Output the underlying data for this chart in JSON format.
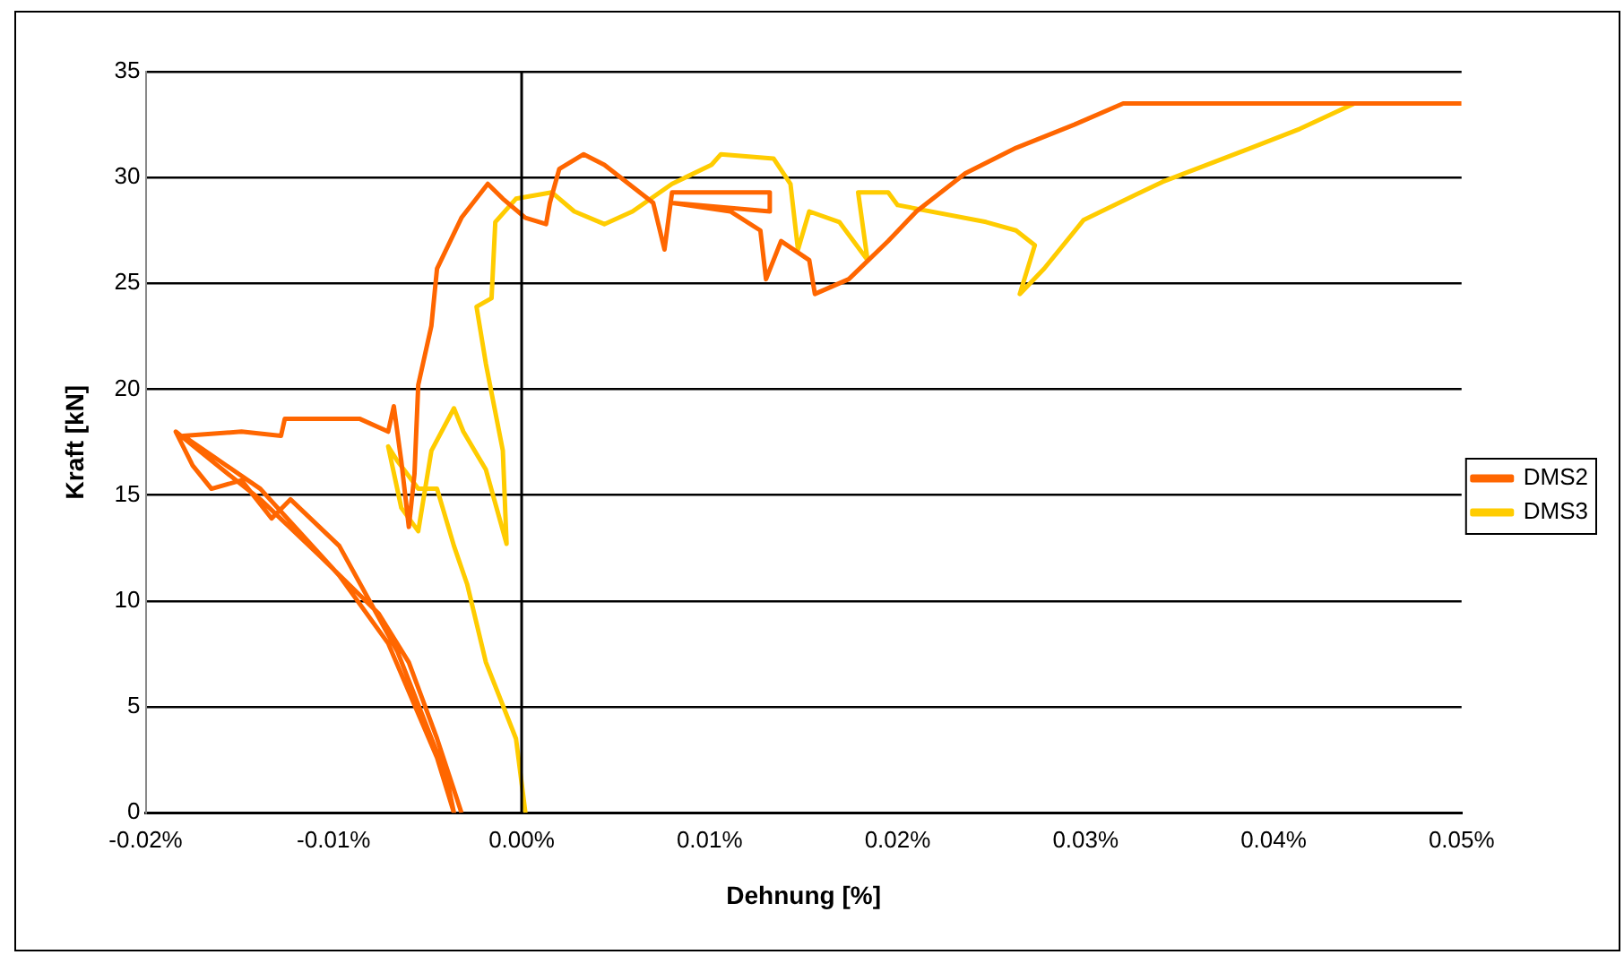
{
  "chart_data": {
    "type": "line",
    "xlabel": "Dehnung [%]",
    "ylabel": "Kraft [kN]",
    "xlim": [
      -0.02,
      0.05
    ],
    "ylim": [
      0,
      35
    ],
    "xticks": [
      {
        "value": -0.02,
        "label": "-0.02%"
      },
      {
        "value": -0.01,
        "label": "-0.01%"
      },
      {
        "value": 0,
        "label": "0.00%"
      },
      {
        "value": 0.01,
        "label": "0.01%"
      },
      {
        "value": 0.02,
        "label": "0.02%"
      },
      {
        "value": 0.03,
        "label": "0.03%"
      },
      {
        "value": 0.04,
        "label": "0.04%"
      },
      {
        "value": 0.05,
        "label": "0.05%"
      }
    ],
    "yticks": [
      0,
      5,
      10,
      15,
      20,
      25,
      30,
      35
    ],
    "grid": "y",
    "legend": "right",
    "marker": "none",
    "ref_lines": [
      {
        "axis": "x",
        "value": 0,
        "color": "#000000"
      }
    ],
    "series": [
      {
        "name": "DMS2",
        "color": "#ff6600",
        "x": [
          -0.0032,
          -0.0045,
          -0.006,
          -0.0076,
          -0.0107,
          -0.0139,
          -0.0159,
          -0.0184,
          -0.0175,
          -0.0165,
          -0.0149,
          -0.0133,
          -0.0123,
          -0.0097,
          -0.0066,
          -0.004,
          -0.0036,
          -0.0045,
          -0.0071,
          -0.0097,
          -0.0139,
          -0.018,
          -0.0149,
          -0.0128,
          -0.0126,
          -0.0086,
          -0.0071,
          -0.0068,
          -0.0064,
          -0.006,
          -0.0057,
          -0.0055,
          -0.0048,
          -0.0045,
          -0.0032,
          -0.0018,
          -0.001,
          0.0002,
          0.0013,
          0.0015,
          0.002,
          0.0033,
          0.0044,
          0.0057,
          0.007,
          0.0076,
          0.008,
          0.0132,
          0.0132,
          0.008,
          0.0111,
          0.0127,
          0.013,
          0.0138,
          0.0153,
          0.0156,
          0.0174,
          0.0195,
          0.021,
          0.0236,
          0.0263,
          0.0294,
          0.032,
          0.05
        ],
        "values": [
          0,
          3.5,
          7.1,
          9.4,
          12.1,
          14.8,
          16.2,
          18,
          16.4,
          15.3,
          15.7,
          13.9,
          14.8,
          12.6,
          7.6,
          1.7,
          0,
          2.6,
          8,
          11.2,
          15.3,
          17.8,
          18,
          17.8,
          18.6,
          18.6,
          18,
          19.2,
          16.6,
          13.5,
          16,
          20.2,
          23,
          25.7,
          28.1,
          29.7,
          29,
          28.1,
          27.8,
          28.8,
          30.4,
          31.1,
          30.6,
          29.7,
          28.8,
          26.6,
          29.3,
          29.3,
          28.4,
          28.8,
          28.4,
          27.5,
          25.2,
          27,
          26.1,
          24.5,
          25.2,
          27,
          28.4,
          30.2,
          31.4,
          32.5,
          33.5,
          33.5
        ]
      },
      {
        "name": "DMS3",
        "color": "#ffcc00",
        "x": [
          0.0002,
          -0.0003,
          -0.0019,
          -0.0029,
          -0.0036,
          -0.0045,
          -0.0055,
          -0.0066,
          -0.0071,
          -0.0064,
          -0.0055,
          -0.0048,
          -0.0036,
          -0.0031,
          -0.0019,
          -0.0008,
          -0.001,
          -0.0019,
          -0.0024,
          -0.0016,
          -0.0014,
          -0.0003,
          0.0016,
          0.0028,
          0.0044,
          0.0059,
          0.008,
          0.0101,
          0.0106,
          0.0134,
          0.0143,
          0.0147,
          0.0153,
          0.0169,
          0.0184,
          0.0179,
          0.0195,
          0.02,
          0.0247,
          0.0263,
          0.0273,
          0.0265,
          0.0278,
          0.0299,
          0.0341,
          0.0388,
          0.0414,
          0.0443
        ],
        "values": [
          0,
          3.5,
          7.1,
          10.8,
          12.6,
          15.3,
          15.3,
          16.6,
          17.3,
          14.4,
          13.3,
          17.1,
          19.1,
          18,
          16.2,
          12.7,
          17.1,
          21.2,
          23.9,
          24.3,
          27.9,
          29,
          29.3,
          28.4,
          27.8,
          28.4,
          29.7,
          30.6,
          31.1,
          30.9,
          29.7,
          26.6,
          28.4,
          27.9,
          26.1,
          29.3,
          29.3,
          28.7,
          27.9,
          27.5,
          26.8,
          24.5,
          25.7,
          28,
          29.8,
          31.4,
          32.3,
          33.5
        ]
      }
    ]
  }
}
